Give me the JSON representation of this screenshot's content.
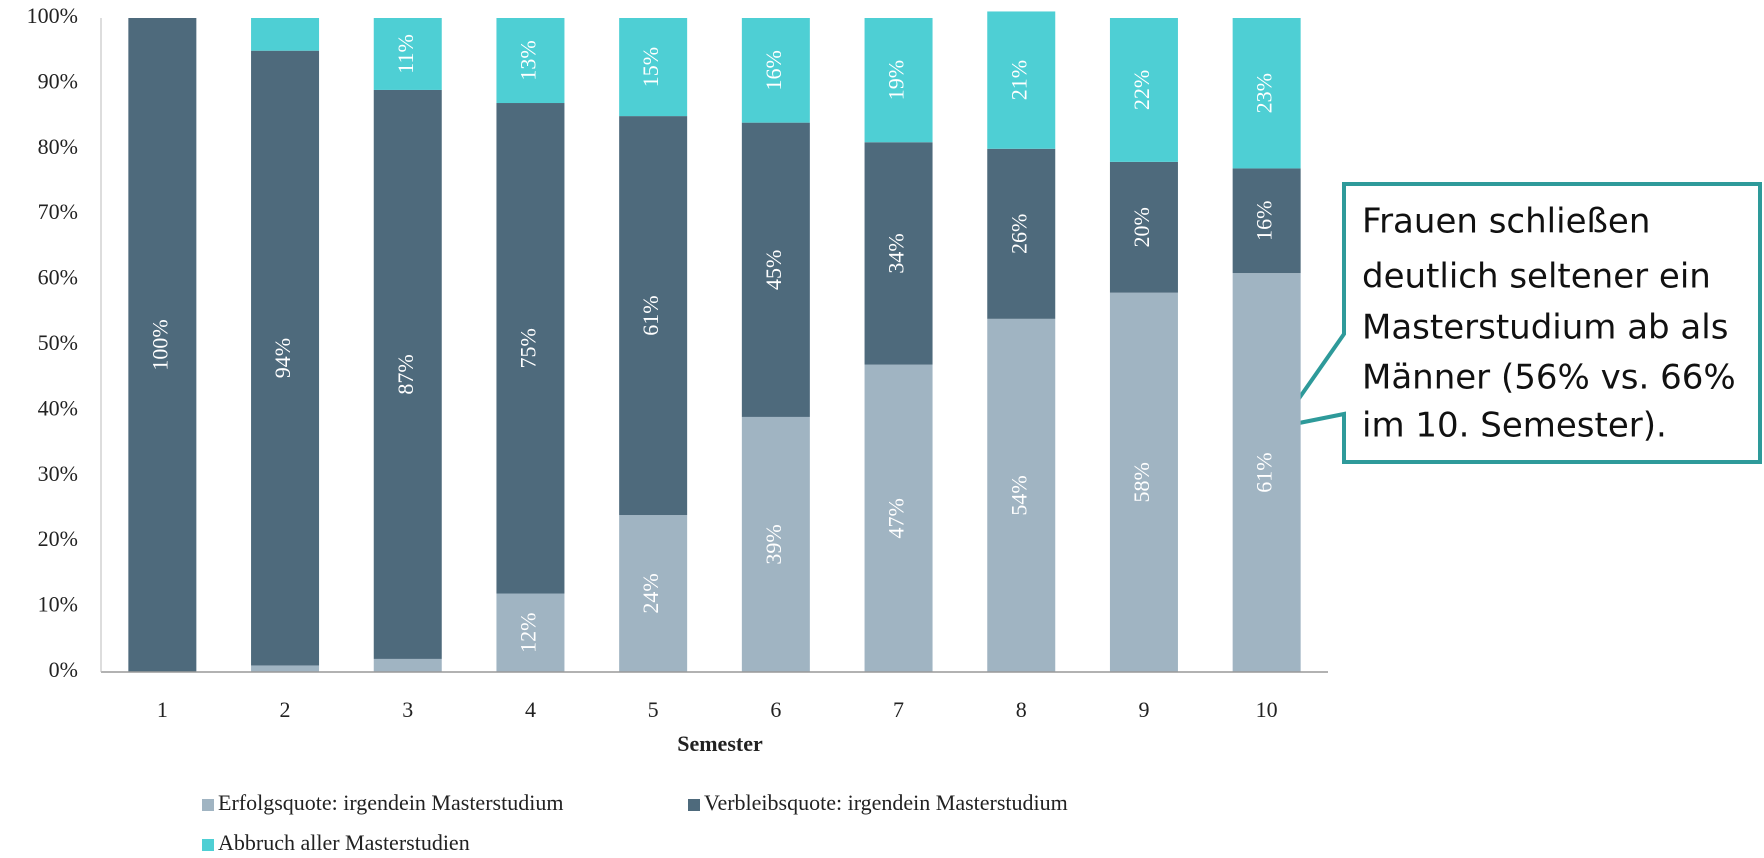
{
  "chart_data": {
    "type": "stacked_bar",
    "x_label": "Semester",
    "categories": [
      "1",
      "2",
      "3",
      "4",
      "5",
      "6",
      "7",
      "8",
      "9",
      "10"
    ],
    "series": [
      {
        "name": "Erfolgsquote: irgendein Masterstudium",
        "color": "#a0b4c2",
        "values": [
          0,
          1,
          2,
          12,
          24,
          39,
          47,
          54,
          58,
          61
        ],
        "value_labels": [
          null,
          null,
          null,
          "12%",
          "24%",
          "39%",
          "47%",
          "54%",
          "58%",
          "61%"
        ]
      },
      {
        "name": "Verbleibsquote: irgendein Masterstudium",
        "color": "#4e6a7c",
        "values": [
          100,
          94,
          87,
          75,
          61,
          45,
          34,
          26,
          20,
          16
        ],
        "value_labels": [
          "100%",
          "94%",
          "87%",
          "75%",
          "61%",
          "45%",
          "34%",
          "26%",
          "20%",
          "16%"
        ]
      },
      {
        "name": "Abbruch aller Masterstudien",
        "color": "#4ecfd4",
        "values": [
          0,
          5,
          11,
          13,
          15,
          16,
          19,
          21,
          22,
          23
        ],
        "value_labels": [
          null,
          null,
          "11%",
          "13%",
          "15%",
          "16%",
          "19%",
          "21%",
          "22%",
          "23%"
        ]
      }
    ],
    "ylim": [
      0,
      100
    ],
    "yticks": [
      {
        "value": 0,
        "label": "0%"
      },
      {
        "value": 10,
        "label": "10%"
      },
      {
        "value": 20,
        "label": "20%"
      },
      {
        "value": 30,
        "label": "30%"
      },
      {
        "value": 40,
        "label": "40%"
      },
      {
        "value": 50,
        "label": "50%"
      },
      {
        "value": 60,
        "label": "60%"
      },
      {
        "value": 70,
        "label": "70%"
      },
      {
        "value": 80,
        "label": "80%"
      },
      {
        "value": 90,
        "label": "90%"
      },
      {
        "value": 100,
        "label": "100%"
      }
    ],
    "grid": false,
    "annotation": [
      "Frauen schließen",
      "deutlich seltener ein",
      "Masterstudium ab als",
      "Männer (56% vs. 66%",
      "im 10. Semester)."
    ]
  }
}
